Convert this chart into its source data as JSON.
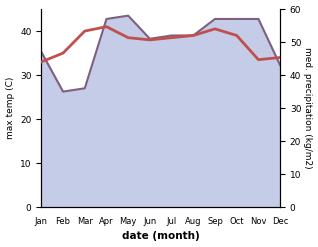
{
  "months": [
    "Jan",
    "Feb",
    "Mar",
    "Apr",
    "May",
    "Jun",
    "Jul",
    "Aug",
    "Sep",
    "Oct",
    "Nov",
    "Dec"
  ],
  "month_x": [
    0,
    1,
    2,
    3,
    4,
    5,
    6,
    7,
    8,
    9,
    10,
    11
  ],
  "temp": [
    33,
    35,
    40,
    41,
    38.5,
    38,
    38.5,
    39,
    40.5,
    39,
    33.5,
    34
  ],
  "precip": [
    47,
    35,
    36,
    57,
    58,
    51,
    52,
    52,
    57,
    57,
    57,
    43
  ],
  "temp_color": "#c0504d",
  "precip_line_color": "#7f6080",
  "precip_fill_color": "#c5cce8",
  "background_color": "#ffffff",
  "ylabel_left": "max temp (C)",
  "ylabel_right": "med. precipitation (kg/m2)",
  "xlabel": "date (month)",
  "ylim_left": [
    0,
    45
  ],
  "ylim_right": [
    0,
    60
  ],
  "yticks_left": [
    0,
    10,
    20,
    30,
    40
  ],
  "yticks_right": [
    0,
    10,
    20,
    30,
    40,
    50,
    60
  ],
  "temp_linewidth": 2.0,
  "precip_linewidth": 1.5
}
